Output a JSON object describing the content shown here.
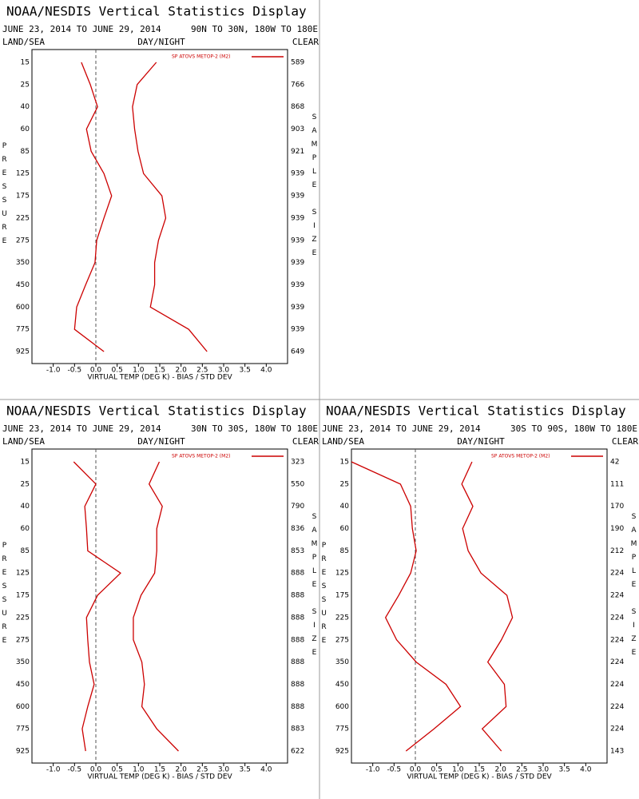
{
  "chart_data": [
    {
      "type": "line",
      "title": "NOAA/NESDIS Vertical Statistics Display",
      "subtitle": "JUNE 23, 2014 TO JUNE 29, 2014",
      "region": "90N TO 30N, 180W TO 180E",
      "left_header": "LAND/SEA",
      "center_header": "DAY/NIGHT",
      "right_header": "CLEAR",
      "ylabel": "PRESSURE",
      "y2label": "SAMPLE SIZE",
      "xlabel": "VIRTUAL TEMP (DEG K) - BIAS / STD DEV",
      "categories": [
        15,
        25,
        40,
        60,
        85,
        125,
        175,
        225,
        275,
        350,
        450,
        600,
        775,
        925
      ],
      "sample_size": [
        589,
        766,
        868,
        903,
        921,
        939,
        939,
        939,
        939,
        939,
        939,
        939,
        939,
        649
      ],
      "series": [
        {
          "name": "SP ATOVS METOP-2 (M2)",
          "color": "#cc0000",
          "values": [
            -0.34,
            -0.13,
            0.04,
            -0.22,
            -0.11,
            0.19,
            0.37,
            0.19,
            0.02,
            -0.02,
            -0.24,
            -0.45,
            -0.5,
            0.19
          ]
        },
        {
          "color": "#cc0000",
          "values": [
            1.42,
            0.97,
            0.86,
            0.91,
            0.99,
            1.12,
            1.55,
            1.64,
            1.47,
            1.38,
            1.38,
            1.28,
            2.18,
            2.61
          ]
        }
      ],
      "xlim": [
        -1.5,
        4.5
      ],
      "xticks": [
        {
          "value": -1,
          "label": "-1.0"
        },
        {
          "value": -0.5,
          "label": "-0.5"
        },
        {
          "value": 0,
          "label": "0.0"
        },
        {
          "value": 0.5,
          "label": "0.5"
        },
        {
          "value": 1,
          "label": "1.0"
        },
        {
          "value": 1.5,
          "label": "1.5"
        },
        {
          "value": 2,
          "label": "2.0"
        },
        {
          "value": 2.5,
          "label": "2.5"
        },
        {
          "value": 3,
          "label": "3.0"
        },
        {
          "value": 3.5,
          "label": "3.5"
        },
        {
          "value": 4,
          "label": "4.0"
        }
      ]
    },
    {
      "type": "line",
      "title": "NOAA/NESDIS Vertical Statistics Display",
      "subtitle": "JUNE 23, 2014 TO JUNE 29, 2014",
      "region": "30N TO 30S, 180W TO 180E",
      "left_header": "LAND/SEA",
      "center_header": "DAY/NIGHT",
      "right_header": "CLEAR",
      "ylabel": "PRESSURE",
      "y2label": "SAMPLE SIZE",
      "xlabel": "VIRTUAL TEMP (DEG K) - BIAS / STD DEV",
      "categories": [
        15,
        25,
        40,
        60,
        85,
        125,
        175,
        225,
        275,
        350,
        450,
        600,
        775,
        925
      ],
      "sample_size": [
        323,
        550,
        790,
        836,
        853,
        888,
        888,
        888,
        888,
        888,
        888,
        888,
        883,
        622
      ],
      "series": [
        {
          "name": "SP ATOVS METOP-2 (M2)",
          "color": "#cc0000",
          "values": [
            -0.52,
            0,
            -0.26,
            -0.22,
            -0.19,
            0.58,
            0.04,
            -0.22,
            -0.19,
            -0.15,
            -0.04,
            -0.19,
            -0.32,
            -0.24
          ]
        },
        {
          "color": "#cc0000",
          "values": [
            1.49,
            1.25,
            1.56,
            1.43,
            1.43,
            1.38,
            1.06,
            0.88,
            0.88,
            1.08,
            1.14,
            1.08,
            1.43,
            1.94
          ]
        }
      ],
      "xlim": [
        -1.5,
        4.5
      ],
      "xticks": [
        {
          "value": -1,
          "label": "-1.0"
        },
        {
          "value": -0.5,
          "label": "-0.5"
        },
        {
          "value": 0,
          "label": "0.0"
        },
        {
          "value": 0.5,
          "label": "0.5"
        },
        {
          "value": 1,
          "label": "1.0"
        },
        {
          "value": 1.5,
          "label": "1.5"
        },
        {
          "value": 2,
          "label": "2.0"
        },
        {
          "value": 2.5,
          "label": "2.5"
        },
        {
          "value": 3,
          "label": "3.0"
        },
        {
          "value": 3.5,
          "label": "3.5"
        },
        {
          "value": 4,
          "label": "4.0"
        }
      ]
    },
    {
      "type": "line",
      "title": "NOAA/NESDIS Vertical Statistics Display",
      "subtitle": "JUNE 23, 2014 TO JUNE 29, 2014",
      "region": "30S TO 90S, 180W TO 180E",
      "left_header": "LAND/SEA",
      "center_header": "DAY/NIGHT",
      "right_header": "CLEAR",
      "ylabel": "PRESSURE",
      "y2label": "SAMPLE SIZE",
      "xlabel": "VIRTUAL TEMP (DEG K) - BIAS / STD DEV",
      "categories": [
        15,
        25,
        40,
        60,
        85,
        125,
        175,
        225,
        275,
        350,
        450,
        600,
        775,
        925
      ],
      "sample_size": [
        42,
        111,
        170,
        190,
        212,
        224,
        224,
        224,
        224,
        224,
        224,
        224,
        224,
        143
      ],
      "series": [
        {
          "name": "SP ATOVS METOP-2 (M2)",
          "color": "#cc0000",
          "values": [
            -1.5,
            -0.35,
            -0.11,
            -0.07,
            0.02,
            -0.11,
            -0.39,
            -0.7,
            -0.44,
            0.02,
            0.72,
            1.06,
            0.44,
            -0.22
          ]
        },
        {
          "color": "#cc0000",
          "values": [
            1.33,
            1.09,
            1.35,
            1.11,
            1.24,
            1.54,
            2.15,
            2.28,
            2.02,
            1.7,
            2.09,
            2.13,
            1.57,
            2.02
          ]
        }
      ],
      "xlim": [
        -1.5,
        4.5
      ],
      "xticks": [
        {
          "value": -1,
          "label": "-1.0"
        },
        {
          "value": -0.5,
          "label": "-0.5"
        },
        {
          "value": 0,
          "label": "0.0"
        },
        {
          "value": 0.5,
          "label": "0.5"
        },
        {
          "value": 1,
          "label": "1.0"
        },
        {
          "value": 1.5,
          "label": "1.5"
        },
        {
          "value": 2,
          "label": "2.0"
        },
        {
          "value": 2.5,
          "label": "2.5"
        },
        {
          "value": 3,
          "label": "3.0"
        },
        {
          "value": 3.5,
          "label": "3.5"
        },
        {
          "value": 4,
          "label": "4.0"
        }
      ]
    }
  ]
}
